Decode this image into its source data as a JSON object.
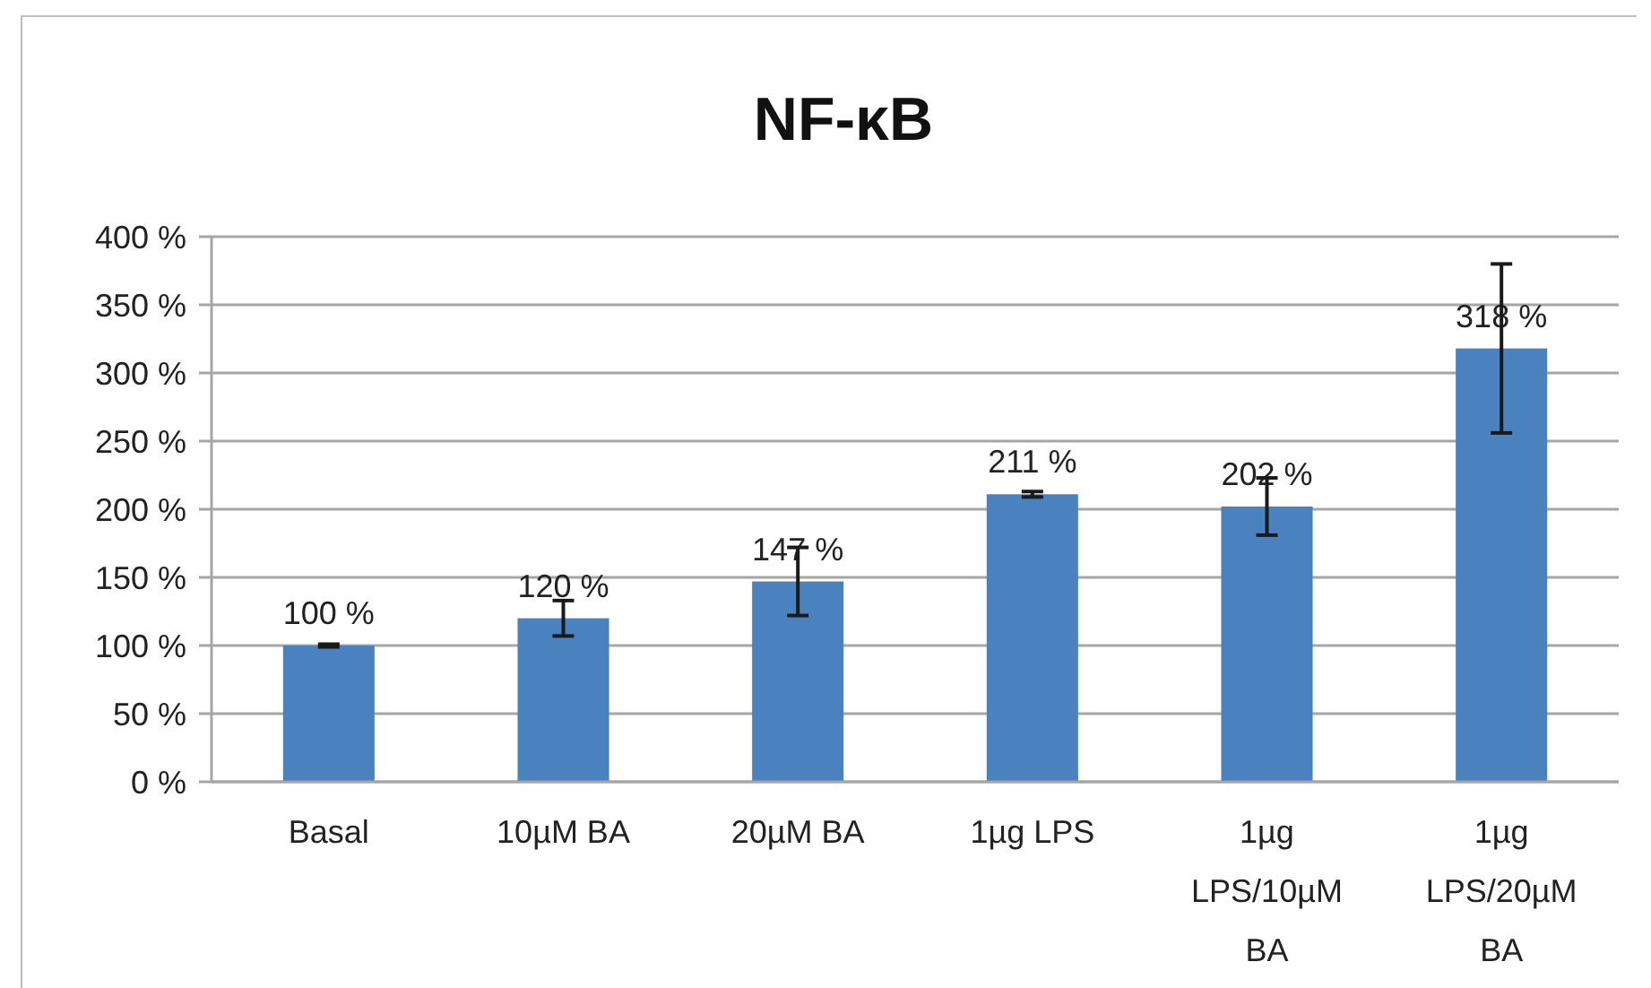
{
  "chart_data": {
    "type": "bar",
    "title": "NF-κB",
    "categories": [
      "Basal",
      "10µM BA",
      "20µM BA",
      "1µg LPS",
      "1µg LPS/10µM BA",
      "1µg LPS/20µM BA"
    ],
    "values": [
      100,
      120,
      147,
      211,
      202,
      318
    ],
    "errors": [
      1,
      13,
      25,
      2,
      21,
      62
    ],
    "value_labels": [
      "100 %",
      "120 %",
      "147 %",
      "211 %",
      "202 %",
      "318 %"
    ],
    "color": "#4a81bf",
    "ylim": [
      0,
      400
    ],
    "yticks": [
      {
        "value": 0,
        "label": "0 %"
      },
      {
        "value": 50,
        "label": "50 %"
      },
      {
        "value": 100,
        "label": "100 %"
      },
      {
        "value": 150,
        "label": "150 %"
      },
      {
        "value": 200,
        "label": "200 %"
      },
      {
        "value": 250,
        "label": "250 %"
      },
      {
        "value": 300,
        "label": "300 %"
      },
      {
        "value": 350,
        "label": "350 %"
      },
      {
        "value": 400,
        "label": "400 %"
      }
    ],
    "grid": "y"
  }
}
